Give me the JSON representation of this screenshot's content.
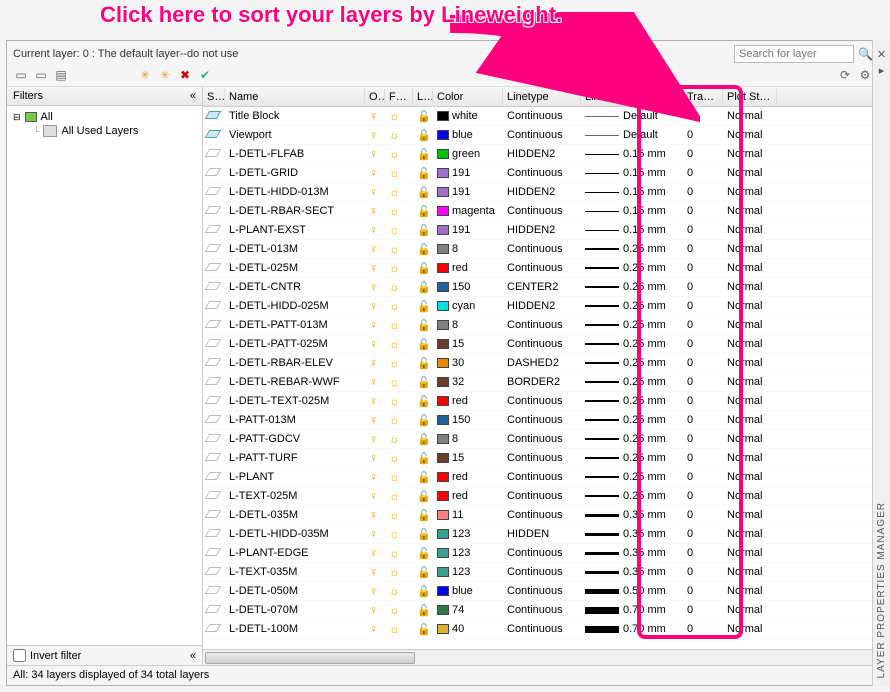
{
  "callout_text": "Click here to sort your layers by Lineweight.",
  "header": {
    "current_layer": "Current layer: 0 : The default layer--do not use",
    "search_placeholder": "Search for layer"
  },
  "filters": {
    "title": "Filters",
    "collapse": "«",
    "all": "All",
    "used": "All Used Layers",
    "invert": "Invert filter"
  },
  "columns": {
    "status": "S...",
    "name": "Name",
    "on": "O...",
    "freeze": "Fre...",
    "lock": "L...",
    "color": "Color",
    "linetype": "Linetype",
    "lineweight": "Lineweight",
    "trans": "Tran...",
    "plot": "Plot Style"
  },
  "status_text": "All: 34 layers displayed of 34 total layers",
  "sidebar_label": "LAYER PROPERTIES MANAGER",
  "rows": [
    {
      "status": "on",
      "name": "Title Block",
      "color": "white",
      "swatch": "#000000",
      "linetype": "Continuous",
      "lw": "Default",
      "lwc": "lw0",
      "trans": "0",
      "plot": "Normal"
    },
    {
      "status": "on",
      "name": "Viewport",
      "color": "blue",
      "swatch": "#0000ff",
      "linetype": "Continuous",
      "lw": "Default",
      "lwc": "lw0",
      "trans": "0",
      "plot": "Normal"
    },
    {
      "status": "off",
      "name": "L-DETL-FLFAB",
      "color": "green",
      "swatch": "#00c000",
      "linetype": "HIDDEN2",
      "lw": "0.15 mm",
      "lwc": "lw1",
      "trans": "0",
      "plot": "Normal"
    },
    {
      "status": "off",
      "name": "L-DETL-GRID",
      "color": "191",
      "swatch": "#a070d0",
      "linetype": "Continuous",
      "lw": "0.15 mm",
      "lwc": "lw1",
      "trans": "0",
      "plot": "Normal"
    },
    {
      "status": "off",
      "name": "L-DETL-HIDD-013M",
      "color": "191",
      "swatch": "#a070d0",
      "linetype": "HIDDEN2",
      "lw": "0.15 mm",
      "lwc": "lw1",
      "trans": "0",
      "plot": "Normal"
    },
    {
      "status": "off",
      "name": "L-DETL-RBAR-SECT",
      "color": "magenta",
      "swatch": "#ff00ff",
      "linetype": "Continuous",
      "lw": "0.15 mm",
      "lwc": "lw1",
      "trans": "0",
      "plot": "Normal"
    },
    {
      "status": "off",
      "name": "L-PLANT-EXST",
      "color": "191",
      "swatch": "#a070d0",
      "linetype": "HIDDEN2",
      "lw": "0.15 mm",
      "lwc": "lw1",
      "trans": "0",
      "plot": "Normal"
    },
    {
      "status": "off",
      "name": "L-DETL-013M",
      "color": "8",
      "swatch": "#808080",
      "linetype": "Continuous",
      "lw": "0.25 mm",
      "lwc": "lw2",
      "trans": "0",
      "plot": "Normal"
    },
    {
      "status": "off",
      "name": "L-DETL-025M",
      "color": "red",
      "swatch": "#ff0000",
      "linetype": "Continuous",
      "lw": "0.25 mm",
      "lwc": "lw2",
      "trans": "0",
      "plot": "Normal"
    },
    {
      "status": "off",
      "name": "L-DETL-CNTR",
      "color": "150",
      "swatch": "#2060a0",
      "linetype": "CENTER2",
      "lw": "0.25 mm",
      "lwc": "lw2",
      "trans": "0",
      "plot": "Normal"
    },
    {
      "status": "off",
      "name": "L-DETL-HIDD-025M",
      "color": "cyan",
      "swatch": "#00e0e0",
      "linetype": "HIDDEN2",
      "lw": "0.25 mm",
      "lwc": "lw2",
      "trans": "0",
      "plot": "Normal"
    },
    {
      "status": "off",
      "name": "L-DETL-PATT-013M",
      "color": "8",
      "swatch": "#808080",
      "linetype": "Continuous",
      "lw": "0.25 mm",
      "lwc": "lw2",
      "trans": "0",
      "plot": "Normal"
    },
    {
      "status": "off",
      "name": "L-DETL-PATT-025M",
      "color": "15",
      "swatch": "#6b3b2b",
      "linetype": "Continuous",
      "lw": "0.25 mm",
      "lwc": "lw2",
      "trans": "0",
      "plot": "Normal"
    },
    {
      "status": "off",
      "name": "L-DETL-RBAR-ELEV",
      "color": "30",
      "swatch": "#e68a00",
      "linetype": "DASHED2",
      "lw": "0.25 mm",
      "lwc": "lw2",
      "trans": "0",
      "plot": "Normal"
    },
    {
      "status": "off",
      "name": "L-DETL-REBAR-WWF",
      "color": "32",
      "swatch": "#6b3b2b",
      "linetype": "BORDER2",
      "lw": "0.25 mm",
      "lwc": "lw2",
      "trans": "0",
      "plot": "Normal"
    },
    {
      "status": "off",
      "name": "L-DETL-TEXT-025M",
      "color": "red",
      "swatch": "#ff0000",
      "linetype": "Continuous",
      "lw": "0.25 mm",
      "lwc": "lw2",
      "trans": "0",
      "plot": "Normal"
    },
    {
      "status": "off",
      "name": "L-PATT-013M",
      "color": "150",
      "swatch": "#2060a0",
      "linetype": "Continuous",
      "lw": "0.25 mm",
      "lwc": "lw2",
      "trans": "0",
      "plot": "Normal"
    },
    {
      "status": "off",
      "name": "L-PATT-GDCV",
      "color": "8",
      "swatch": "#808080",
      "linetype": "Continuous",
      "lw": "0.25 mm",
      "lwc": "lw2",
      "trans": "0",
      "plot": "Normal"
    },
    {
      "status": "off",
      "name": "L-PATT-TURF",
      "color": "15",
      "swatch": "#6b3b2b",
      "linetype": "Continuous",
      "lw": "0.25 mm",
      "lwc": "lw2",
      "trans": "0",
      "plot": "Normal"
    },
    {
      "status": "off",
      "name": "L-PLANT",
      "color": "red",
      "swatch": "#ff0000",
      "linetype": "Continuous",
      "lw": "0.25 mm",
      "lwc": "lw2",
      "trans": "0",
      "plot": "Normal"
    },
    {
      "status": "off",
      "name": "L-TEXT-025M",
      "color": "red",
      "swatch": "#ff0000",
      "linetype": "Continuous",
      "lw": "0.25 mm",
      "lwc": "lw2",
      "trans": "0",
      "plot": "Normal"
    },
    {
      "status": "off",
      "name": "L-DETL-035M",
      "color": "11",
      "swatch": "#ff8080",
      "linetype": "Continuous",
      "lw": "0.35 mm",
      "lwc": "lw3",
      "trans": "0",
      "plot": "Normal"
    },
    {
      "status": "off",
      "name": "L-DETL-HIDD-035M",
      "color": "123",
      "swatch": "#3aa090",
      "linetype": "HIDDEN",
      "lw": "0.35 mm",
      "lwc": "lw3",
      "trans": "0",
      "plot": "Normal"
    },
    {
      "status": "off",
      "name": "L-PLANT-EDGE",
      "color": "123",
      "swatch": "#3aa090",
      "linetype": "Continuous",
      "lw": "0.35 mm",
      "lwc": "lw3",
      "trans": "0",
      "plot": "Normal"
    },
    {
      "status": "off",
      "name": "L-TEXT-035M",
      "color": "123",
      "swatch": "#3aa090",
      "linetype": "Continuous",
      "lw": "0.35 mm",
      "lwc": "lw3",
      "trans": "0",
      "plot": "Normal"
    },
    {
      "status": "off",
      "name": "L-DETL-050M",
      "color": "blue",
      "swatch": "#0000ff",
      "linetype": "Continuous",
      "lw": "0.50 mm",
      "lwc": "lw5",
      "trans": "0",
      "plot": "Normal"
    },
    {
      "status": "off",
      "name": "L-DETL-070M",
      "color": "74",
      "swatch": "#2a7a4a",
      "linetype": "Continuous",
      "lw": "0.70 mm",
      "lwc": "lw7",
      "trans": "0",
      "plot": "Normal"
    },
    {
      "status": "off",
      "name": "L-DETL-100M",
      "color": "40",
      "swatch": "#e0b030",
      "linetype": "Continuous",
      "lw": "0.70 mm",
      "lwc": "lw7",
      "trans": "0",
      "plot": "Normal"
    }
  ]
}
